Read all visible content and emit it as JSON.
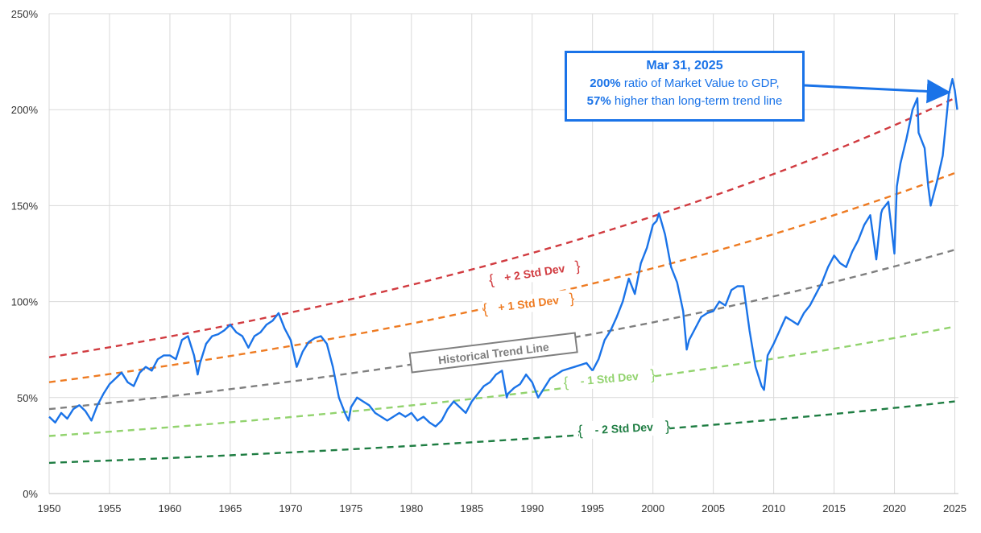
{
  "chart_data": {
    "type": "line",
    "title": "",
    "xlabel": "",
    "ylabel": "",
    "xlim": [
      1950,
      2025.3
    ],
    "ylim": [
      0,
      250
    ],
    "grid": true,
    "x_ticks": [
      "1950",
      "1955",
      "1960",
      "1965",
      "1970",
      "1975",
      "1980",
      "1985",
      "1990",
      "1995",
      "2000",
      "2005",
      "2010",
      "2015",
      "2020",
      "2025"
    ],
    "y_ticks": [
      "0%",
      "50%",
      "100%",
      "150%",
      "200%",
      "250%"
    ],
    "y_tick_values": [
      0,
      50,
      100,
      150,
      200,
      250
    ],
    "series": [
      {
        "name": "",
        "color": "#1a73e8",
        "style": "solid",
        "x": [
          1950,
          1950.5,
          1951,
          1951.5,
          1952,
          1952.5,
          1953,
          1953.5,
          1954,
          1954.5,
          1955,
          1955.5,
          1956,
          1956.5,
          1957,
          1957.5,
          1958,
          1958.5,
          1959,
          1959.5,
          1960,
          1960.5,
          1961,
          1961.5,
          1962,
          1962.3,
          1962.5,
          1963,
          1963.5,
          1964,
          1964.5,
          1965,
          1965.5,
          1966,
          1966.5,
          1967,
          1967.5,
          1968,
          1968.5,
          1969,
          1969.5,
          1970,
          1970.5,
          1971,
          1971.5,
          1972,
          1972.5,
          1973,
          1973.5,
          1974,
          1974.5,
          1974.8,
          1975,
          1975.5,
          1976,
          1976.5,
          1977,
          1977.5,
          1978,
          1978.5,
          1979,
          1979.5,
          1980,
          1980.5,
          1981,
          1981.5,
          1982,
          1982.5,
          1983,
          1983.5,
          1984,
          1984.5,
          1985,
          1985.5,
          1986,
          1986.5,
          1987,
          1987.5,
          1987.9,
          1988,
          1988.5,
          1989,
          1989.5,
          1990,
          1990.5,
          1991,
          1991.5,
          1992,
          1992.5,
          1993,
          1993.5,
          1994,
          1994.5,
          1995,
          1995.5,
          1996,
          1996.5,
          1997,
          1997.5,
          1998,
          1998.5,
          1999,
          1999.5,
          2000,
          2000.3,
          2000.5,
          2001,
          2001.5,
          2002,
          2002.5,
          2002.8,
          2003,
          2003.5,
          2004,
          2004.5,
          2005,
          2005.5,
          2006,
          2006.5,
          2007,
          2007.5,
          2008,
          2008.5,
          2009,
          2009.2,
          2009.5,
          2010,
          2010.5,
          2011,
          2011.5,
          2012,
          2012.5,
          2013,
          2013.5,
          2014,
          2014.5,
          2015,
          2015.5,
          2016,
          2016.5,
          2017,
          2017.5,
          2018,
          2018.5,
          2018.9,
          2019,
          2019.5,
          2020,
          2020.2,
          2020.5,
          2021,
          2021.5,
          2021.9,
          2022,
          2022.5,
          2022.8,
          2023,
          2023.5,
          2024,
          2024.5,
          2024.8,
          2025,
          2025.2
        ],
        "values": [
          40,
          37,
          42,
          39,
          44,
          46,
          43,
          38,
          46,
          52,
          57,
          60,
          63,
          58,
          56,
          63,
          66,
          64,
          70,
          72,
          72,
          70,
          80,
          82,
          72,
          62,
          68,
          78,
          82,
          83,
          85,
          88,
          84,
          82,
          76,
          82,
          84,
          88,
          90,
          94,
          86,
          80,
          66,
          74,
          79,
          81,
          82,
          78,
          66,
          50,
          42,
          38,
          45,
          50,
          48,
          46,
          42,
          40,
          38,
          40,
          42,
          40,
          42,
          38,
          40,
          37,
          35,
          38,
          44,
          48,
          45,
          42,
          48,
          52,
          56,
          58,
          62,
          64,
          50,
          52,
          55,
          57,
          62,
          58,
          50,
          55,
          60,
          62,
          64,
          65,
          66,
          67,
          68,
          64,
          70,
          80,
          85,
          92,
          100,
          112,
          104,
          120,
          128,
          140,
          142,
          146,
          135,
          118,
          110,
          95,
          75,
          80,
          86,
          92,
          94,
          95,
          100,
          98,
          106,
          108,
          108,
          85,
          66,
          56,
          54,
          72,
          78,
          85,
          92,
          90,
          88,
          94,
          98,
          104,
          110,
          118,
          124,
          120,
          118,
          126,
          132,
          140,
          145,
          122,
          146,
          148,
          152,
          125,
          160,
          172,
          185,
          200,
          206,
          188,
          180,
          160,
          150,
          162,
          176,
          208,
          216,
          210,
          200
        ]
      },
      {
        "name": "+ 2 Std Dev",
        "color": "#d13b40",
        "style": "dashed",
        "x": [
          1950,
          2025
        ],
        "start": 71,
        "end": 206
      },
      {
        "name": "+ 1 Std Dev",
        "color": "#ee7b22",
        "style": "dashed",
        "x": [
          1950,
          2025
        ],
        "start": 58,
        "end": 167
      },
      {
        "name": "Historical Trend Line",
        "color": "#7f7f7f",
        "style": "dashed",
        "x": [
          1950,
          2025
        ],
        "start": 44,
        "end": 127
      },
      {
        "name": "- 1 Std Dev",
        "color": "#92d36e",
        "style": "dashed",
        "x": [
          1950,
          2025
        ],
        "start": 30,
        "end": 87
      },
      {
        "name": "- 2 Std Dev",
        "color": "#1e7d42",
        "style": "dashed",
        "x": [
          1950,
          2025
        ],
        "start": 16,
        "end": 48
      }
    ],
    "band_labels": [
      {
        "text": "+ 2 Std Dev",
        "color": "#d13b40",
        "x": 1990.2,
        "y": 115,
        "angle": -9
      },
      {
        "text": "+ 1 Std Dev",
        "color": "#ee7b22",
        "x": 1989.7,
        "y": 99,
        "angle": -7
      },
      {
        "text": "Historical Trend Line",
        "color": "#7f7f7f",
        "x": 1986.8,
        "y": 73,
        "angle": -7,
        "boxed": true
      },
      {
        "text": "- 1 Std Dev",
        "color": "#92d36e",
        "x": 1996.4,
        "y": 60,
        "angle": -5
      },
      {
        "text": "- 2 Std Dev",
        "color": "#1e7d42",
        "x": 1997.6,
        "y": 34,
        "angle": -3
      }
    ],
    "annotation": {
      "date": "Mar 31, 2025",
      "line1_bold": "200%",
      "line1_rest": " ratio of Market Value to GDP,",
      "line2_bold": "57%",
      "line2_rest": " higher than long-term trend line",
      "arrow_target": {
        "x": 2024.75,
        "y": 209
      }
    }
  }
}
